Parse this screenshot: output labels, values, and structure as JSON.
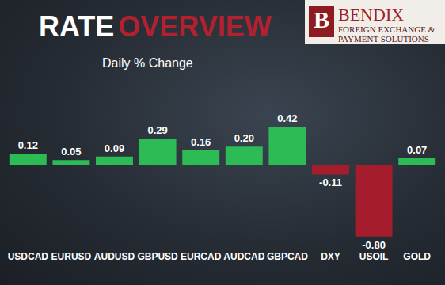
{
  "chart_data": {
    "type": "bar",
    "title": "RATE OVERVIEW",
    "subtitle": "Daily % Change",
    "annotations": [
      "B",
      "BENDIX",
      "FOREIGN EXCHANGE &",
      "PAYMENT SOLUTIONS"
    ],
    "categories": [
      "USDCAD",
      "EURUSD",
      "AUDUSD",
      "GBPUSD",
      "EURCAD",
      "AUDCAD",
      "GBPCAD",
      "DXY",
      "USOIL",
      "GOLD"
    ],
    "values": [
      0.12,
      0.05,
      0.09,
      0.29,
      0.16,
      0.2,
      0.42,
      -0.11,
      -0.8,
      0.07
    ],
    "value_labels": [
      "0.12",
      "0.05",
      "0.09",
      "0.29",
      "0.16",
      "0.20",
      "0.42",
      "-0.11",
      "-0.80",
      "0.07"
    ],
    "colors": [
      "#2dbb55",
      "#2dbb55",
      "#2dbb55",
      "#2dbb55",
      "#2dbb55",
      "#2dbb55",
      "#2dbb55",
      "#a51d2d",
      "#a51d2d",
      "#2dbb55"
    ],
    "ylim": [
      -0.9,
      0.6
    ],
    "yticks": [
      -0.9,
      -0.6,
      -0.3,
      0,
      0.3,
      0.6
    ],
    "grid": false,
    "data_labels": true,
    "tick_labels": "x"
  }
}
